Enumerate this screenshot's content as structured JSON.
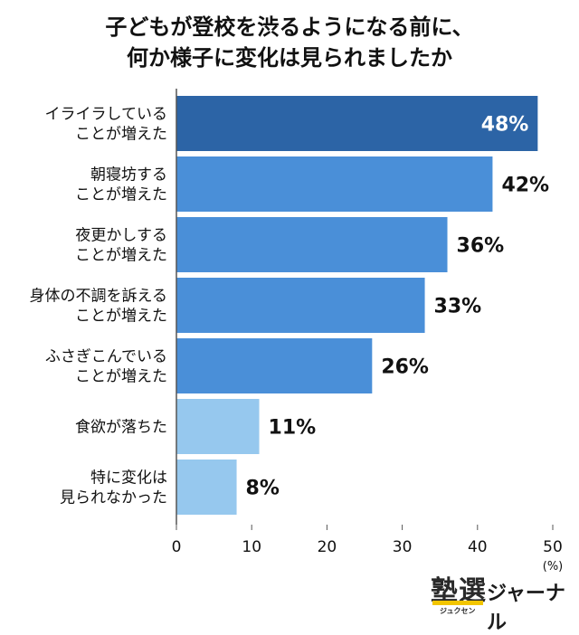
{
  "title_lines": [
    "子どもが登校を渋るようになる前に、",
    "何か様子に変化は見られましたか"
  ],
  "logo": {
    "main": "塾選",
    "sub": "ジュクセン",
    "name": "ジャーナル"
  },
  "chart_data": {
    "type": "bar",
    "orientation": "horizontal",
    "categories": [
      [
        "イライラしている",
        "ことが増えた"
      ],
      [
        "朝寝坊する",
        "ことが増えた"
      ],
      [
        "夜更かしする",
        "ことが増えた"
      ],
      [
        "身体の不調を訴える",
        "ことが増えた"
      ],
      [
        "ふさぎこんでいる",
        "ことが増えた"
      ],
      [
        "食欲が落ちた"
      ],
      [
        "特に変化は",
        "見られなかった"
      ]
    ],
    "values": [
      48,
      42,
      36,
      33,
      26,
      11,
      8
    ],
    "value_labels": [
      "48%",
      "42%",
      "36%",
      "33%",
      "26%",
      "11%",
      "8%"
    ],
    "bar_colors": [
      "#2c64a6",
      "#4a8fd8",
      "#4a8fd8",
      "#4a8fd8",
      "#4a8fd8",
      "#96c8ee",
      "#96c8ee"
    ],
    "label_colors": [
      "#ffffff",
      "#111111",
      "#111111",
      "#111111",
      "#111111",
      "#111111",
      "#111111"
    ],
    "label_inside": [
      true,
      false,
      false,
      false,
      false,
      false,
      false
    ],
    "xlim": [
      0,
      50
    ],
    "xticks": [
      0,
      10,
      20,
      30,
      40,
      50
    ],
    "unit_label": "(%)",
    "grid": false
  }
}
